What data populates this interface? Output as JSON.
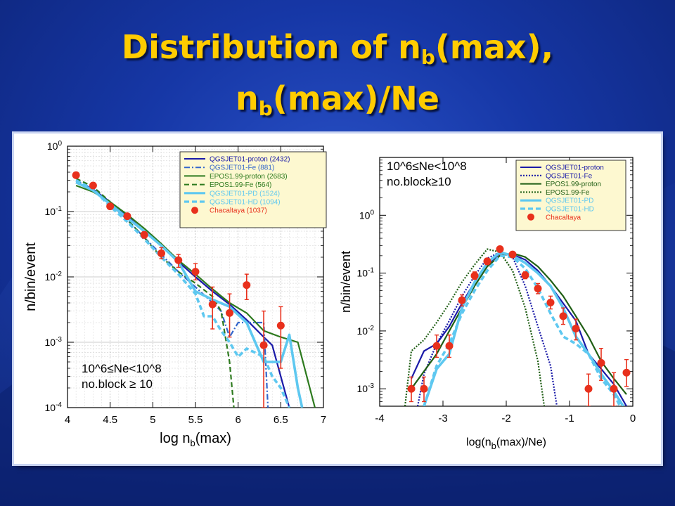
{
  "slide": {
    "title_line1_a": "Distribution of n",
    "title_line1_sub": "b",
    "title_line1_b": "(max),",
    "title_line2_a": "n",
    "title_line2_sub": "b",
    "title_line2_b": "(max)/Ne",
    "background_color": "#1a3db4",
    "title_color": "#ffcc00"
  },
  "chart_data": [
    {
      "type": "line",
      "xlabel": "log n_b(max)",
      "ylabel": "n/bin/event",
      "xlim": [
        4,
        7
      ],
      "ylim": [
        0.0001,
        1
      ],
      "yscale": "log",
      "grid": true,
      "xticks": [
        "4",
        "4.5",
        "5",
        "5.5",
        "6",
        "6.5",
        "7"
      ],
      "yticks": [
        "10^-4",
        "10^-3",
        "10^-2",
        "10^-1",
        "10^0"
      ],
      "annotation_lines": [
        "10^6≤Ne<10^8",
        "no.block ≥ 10"
      ],
      "legend_position": "top-right",
      "series": [
        {
          "name": "QGSJET01-proton (2432)",
          "color": "#1a1aa8",
          "style": "solid",
          "x": [
            4.1,
            4.3,
            4.5,
            4.7,
            4.9,
            5.1,
            5.3,
            5.5,
            5.7,
            5.9,
            6.1,
            6.3,
            6.4,
            6.5,
            6.6
          ],
          "y": [
            0.28,
            0.22,
            0.14,
            0.085,
            0.05,
            0.03,
            0.017,
            0.01,
            0.006,
            0.0038,
            0.0022,
            0.0012,
            0.0009,
            0.0003,
            0.0001
          ]
        },
        {
          "name": "QGSJET01-Fe (881)",
          "color": "#3366cc",
          "style": "dashdot",
          "x": [
            4.1,
            4.3,
            4.5,
            4.7,
            4.9,
            5.1,
            5.3,
            5.5,
            5.7,
            5.8,
            5.9,
            6.0,
            6.1,
            6.3,
            6.35
          ],
          "y": [
            0.3,
            0.22,
            0.13,
            0.075,
            0.04,
            0.022,
            0.012,
            0.007,
            0.004,
            0.003,
            0.0012,
            0.002,
            0.002,
            0.002,
            0.0001
          ]
        },
        {
          "name": "EPOS1.99-proton (2683)",
          "color": "#2d7a1e",
          "style": "solid",
          "x": [
            4.1,
            4.3,
            4.5,
            4.7,
            4.9,
            5.1,
            5.3,
            5.5,
            5.7,
            5.9,
            6.1,
            6.3,
            6.5,
            6.7,
            6.9
          ],
          "y": [
            0.25,
            0.2,
            0.14,
            0.09,
            0.055,
            0.032,
            0.018,
            0.011,
            0.0065,
            0.004,
            0.0028,
            0.0015,
            0.0012,
            0.001,
            0.0001
          ]
        },
        {
          "name": "EPOS1.99-Fe (564)",
          "color": "#2d7a1e",
          "style": "dashed",
          "x": [
            4.1,
            4.3,
            4.5,
            4.7,
            4.9,
            5.1,
            5.3,
            5.5,
            5.7,
            5.8,
            5.9,
            5.95
          ],
          "y": [
            0.32,
            0.24,
            0.14,
            0.075,
            0.04,
            0.02,
            0.012,
            0.008,
            0.005,
            0.003,
            0.0005,
            0.0001
          ]
        },
        {
          "name": "QGSJET01-PD (1524)",
          "color": "#5ec8f0",
          "style": "solid",
          "x": [
            4.1,
            4.3,
            4.5,
            4.7,
            4.9,
            5.1,
            5.3,
            5.5,
            5.7,
            5.9,
            6.1,
            6.3,
            6.5,
            6.6,
            6.7,
            6.75
          ],
          "y": [
            0.28,
            0.21,
            0.13,
            0.08,
            0.05,
            0.03,
            0.017,
            0.006,
            0.0045,
            0.0035,
            0.002,
            0.0005,
            0.0005,
            0.0013,
            0.0002,
            0.0001
          ]
        },
        {
          "name": "QGSJET01-HD (1094)",
          "color": "#5ec8f0",
          "style": "dashed",
          "x": [
            4.1,
            4.3,
            4.5,
            4.7,
            4.9,
            5.1,
            5.3,
            5.5,
            5.6,
            5.7,
            5.8,
            5.9,
            6.0,
            6.1,
            6.3,
            6.4,
            6.5,
            6.6
          ],
          "y": [
            0.3,
            0.22,
            0.12,
            0.07,
            0.038,
            0.02,
            0.011,
            0.0055,
            0.0025,
            0.0025,
            0.0015,
            0.001,
            0.0006,
            0.0008,
            0.0006,
            0.0003,
            0.0002,
            0.0001
          ]
        },
        {
          "name": "Chacaltaya (1037)",
          "color": "#e8301c",
          "style": "points",
          "x": [
            4.1,
            4.3,
            4.5,
            4.7,
            4.9,
            5.1,
            5.3,
            5.5,
            5.7,
            5.9,
            6.1,
            6.3,
            6.5
          ],
          "y": [
            0.36,
            0.25,
            0.12,
            0.085,
            0.044,
            0.023,
            0.018,
            0.012,
            0.0038,
            0.0028,
            0.0075,
            0.0009,
            0.0018
          ],
          "err_lo": [
            0.33,
            0.23,
            0.11,
            0.078,
            0.039,
            0.019,
            0.014,
            0.009,
            0.0016,
            0.0012,
            0.0045,
            0.0001,
            0.0004
          ],
          "err_hi": [
            0.39,
            0.27,
            0.13,
            0.092,
            0.049,
            0.028,
            0.022,
            0.016,
            0.007,
            0.0055,
            0.011,
            0.003,
            0.0035
          ]
        }
      ]
    },
    {
      "type": "line",
      "xlabel": "log(n_b(max)/Ne)",
      "ylabel": "n/bin/event",
      "xlim": [
        -4,
        0
      ],
      "ylim": [
        0.0005,
        10
      ],
      "yscale": "log",
      "grid": false,
      "xticks": [
        "-4",
        "-3",
        "-2",
        "-1",
        "0"
      ],
      "yticks": [
        "10^-3",
        "10^-2",
        "10^-1",
        "10^0"
      ],
      "annotation_lines": [
        "10^6≤Ne<10^8",
        "no.block≥10"
      ],
      "legend_position": "top-right",
      "series": [
        {
          "name": "QGSJET01-proton",
          "color": "#1a1aa8",
          "style": "solid",
          "x": [
            -3.5,
            -3.3,
            -3.1,
            -2.9,
            -2.7,
            -2.5,
            -2.3,
            -2.1,
            -1.9,
            -1.7,
            -1.5,
            -1.3,
            -1.1,
            -0.9,
            -0.7,
            -0.5,
            -0.3,
            -0.1
          ],
          "y": [
            0.0015,
            0.0045,
            0.006,
            0.012,
            0.03,
            0.07,
            0.14,
            0.22,
            0.21,
            0.17,
            0.11,
            0.06,
            0.03,
            0.015,
            0.004,
            0.0022,
            0.0012,
            0.0005
          ]
        },
        {
          "name": "QGSJET01-Fe",
          "color": "#1a1aa8",
          "style": "dotted",
          "x": [
            -3.4,
            -3.3,
            -3.1,
            -2.9,
            -2.7,
            -2.5,
            -2.3,
            -2.1,
            -1.9,
            -1.7,
            -1.5,
            -1.3,
            -1.2
          ],
          "y": [
            0.0005,
            0.0018,
            0.006,
            0.015,
            0.04,
            0.09,
            0.18,
            0.23,
            0.19,
            0.06,
            0.012,
            0.0025,
            0.0005
          ]
        },
        {
          "name": "EPOS1.99-proton",
          "color": "#1f5e14",
          "style": "solid",
          "x": [
            -3.5,
            -3.3,
            -3.1,
            -2.9,
            -2.7,
            -2.5,
            -2.3,
            -2.1,
            -1.9,
            -1.7,
            -1.5,
            -1.3,
            -1.1,
            -0.9,
            -0.7,
            -0.5,
            -0.3,
            -0.1
          ],
          "y": [
            0.001,
            0.002,
            0.004,
            0.01,
            0.025,
            0.06,
            0.13,
            0.2,
            0.22,
            0.19,
            0.13,
            0.075,
            0.04,
            0.018,
            0.008,
            0.003,
            0.0015,
            0.0008
          ]
        },
        {
          "name": "EPOS1.99-Fe",
          "color": "#1f5e14",
          "style": "dotted",
          "x": [
            -3.6,
            -3.5,
            -3.3,
            -3.1,
            -2.9,
            -2.7,
            -2.5,
            -2.3,
            -2.1,
            -1.9,
            -1.7,
            -1.5,
            -1.4
          ],
          "y": [
            0.0005,
            0.0045,
            0.007,
            0.014,
            0.03,
            0.07,
            0.14,
            0.26,
            0.23,
            0.11,
            0.025,
            0.003,
            0.0005
          ]
        },
        {
          "name": "QGSJET01-PD",
          "color": "#5ec8f0",
          "style": "solid",
          "x": [
            -3.3,
            -3.1,
            -2.9,
            -2.7,
            -2.5,
            -2.3,
            -2.1,
            -1.9,
            -1.7,
            -1.5,
            -1.3,
            -1.1,
            -0.9,
            -0.7,
            -0.5,
            -0.3,
            -0.15
          ],
          "y": [
            0.0005,
            0.0022,
            0.004,
            0.025,
            0.07,
            0.15,
            0.23,
            0.2,
            0.15,
            0.1,
            0.06,
            0.025,
            0.008,
            0.004,
            0.0018,
            0.0009,
            0.0005
          ]
        },
        {
          "name": "QGSJET01-HD",
          "color": "#5ec8f0",
          "style": "dashed",
          "x": [
            -3.3,
            -3.1,
            -2.9,
            -2.7,
            -2.5,
            -2.3,
            -2.1,
            -1.9,
            -1.7,
            -1.5,
            -1.3,
            -1.1,
            -0.9,
            -0.7,
            -0.5,
            -0.3,
            -0.2
          ],
          "y": [
            0.0005,
            0.0025,
            0.006,
            0.02,
            0.05,
            0.11,
            0.2,
            0.19,
            0.12,
            0.055,
            0.02,
            0.008,
            0.006,
            0.004,
            0.0015,
            0.0008,
            0.0005
          ]
        },
        {
          "name": "Chacaltaya",
          "color": "#e8301c",
          "style": "points",
          "x": [
            -3.5,
            -3.3,
            -3.1,
            -2.9,
            -2.7,
            -2.5,
            -2.3,
            -2.1,
            -1.9,
            -1.7,
            -1.5,
            -1.3,
            -1.1,
            -0.9,
            -0.7,
            -0.5,
            -0.3,
            -0.1
          ],
          "y": [
            0.001,
            0.001,
            0.0055,
            0.0055,
            0.034,
            0.09,
            0.16,
            0.26,
            0.21,
            0.092,
            0.054,
            0.031,
            0.018,
            0.011,
            0.001,
            0.0028,
            0.001,
            0.0019
          ],
          "err_lo": [
            0.0006,
            0.0006,
            0.0035,
            0.0035,
            0.027,
            0.078,
            0.14,
            0.24,
            0.19,
            0.08,
            0.044,
            0.024,
            0.013,
            0.007,
            0.0005,
            0.0014,
            0.0005,
            0.0011
          ],
          "err_hi": [
            0.0016,
            0.0016,
            0.0085,
            0.0085,
            0.042,
            0.105,
            0.18,
            0.28,
            0.23,
            0.105,
            0.066,
            0.04,
            0.025,
            0.016,
            0.0018,
            0.005,
            0.0019,
            0.0032
          ]
        }
      ]
    }
  ]
}
